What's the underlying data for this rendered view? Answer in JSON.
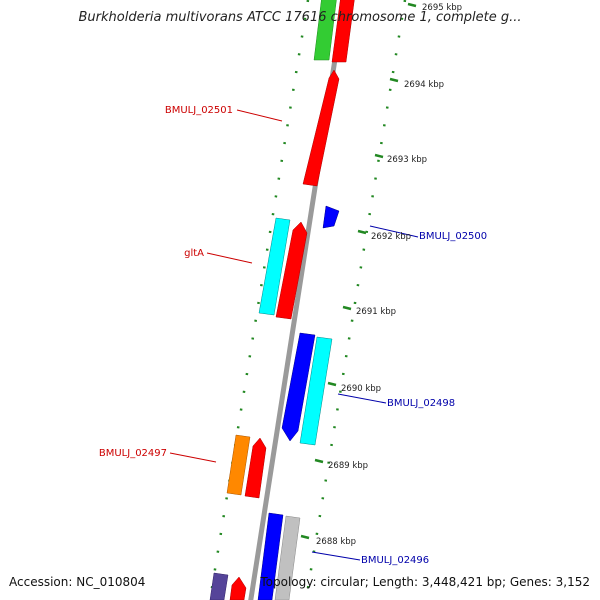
{
  "title": "Burkholderia multivorans ATCC 17616 chromosome 1, complete g...",
  "footer": {
    "accession": "Accession: NC_010804",
    "summary": "Topology: circular; Length: 3,448,421 bp; Genes: 3,152"
  },
  "colors": {
    "red": "#ff0000",
    "blue": "#0000ff",
    "cyan": "#00ffff",
    "green": "#33cc33",
    "orange": "#ff8800",
    "gray": "#c0c0c0",
    "slate": "#554499",
    "tick": "#228822",
    "backbone": "#999999",
    "label_red": "#cc0000",
    "label_blue": "#0000aa"
  },
  "ticks": [
    "2695 kbp",
    "2694 kbp",
    "2693 kbp",
    "2692 kbp",
    "2691 kbp",
    "2690 kbp",
    "2689 kbp",
    "2688 kbp"
  ],
  "gene_labels": [
    {
      "text": "BMULJ_02501",
      "side": "left"
    },
    {
      "text": "gltA",
      "side": "left"
    },
    {
      "text": "BMULJ_02497",
      "side": "left"
    },
    {
      "text": "BMULJ_02500",
      "side": "right"
    },
    {
      "text": "BMULJ_02498",
      "side": "right"
    },
    {
      "text": "BMULJ_02496",
      "side": "right"
    }
  ]
}
